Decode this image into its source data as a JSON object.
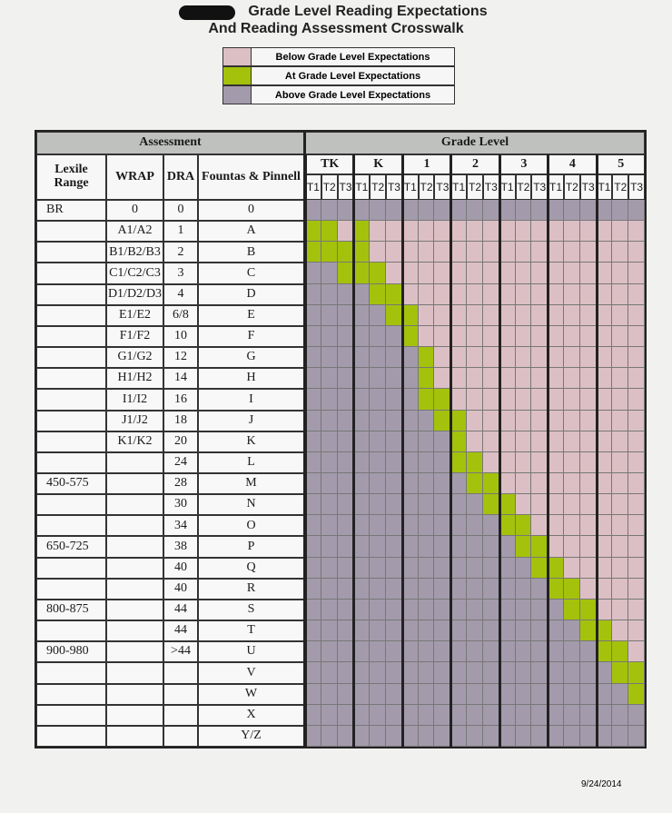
{
  "header": {
    "title": [
      "Grade Level Reading Expectations",
      "And Reading Assessment Crosswalk"
    ]
  },
  "legend": [
    "Below Grade Level Expectations",
    "At Grade Level Expectations",
    "Above Grade Level Expectations"
  ],
  "table": {
    "group_headers": [
      "Assessment",
      "Grade Level"
    ],
    "columns": [
      "Lexile Range",
      "WRAP",
      "DRA",
      "Fountas & Pinnell"
    ],
    "grades": [
      "TK",
      "K",
      1,
      2,
      3,
      4,
      5
    ],
    "terms": [
      "T1",
      "T2",
      "T3"
    ],
    "rows": [
      [
        "BR",
        0,
        0,
        0
      ],
      [
        null,
        "A1/A2",
        1,
        "A"
      ],
      [
        null,
        "B1/B2/B3",
        2,
        "B"
      ],
      [
        null,
        "C1/C2/C3",
        3,
        "C"
      ],
      [
        null,
        "D1/D2/D3",
        4,
        "D"
      ],
      [
        null,
        "E1/E2",
        "6/8",
        "E"
      ],
      [
        null,
        "F1/F2",
        10,
        "F"
      ],
      [
        null,
        "G1/G2",
        12,
        "G"
      ],
      [
        null,
        "H1/H2",
        14,
        "H"
      ],
      [
        null,
        "I1/I2",
        16,
        "I"
      ],
      [
        null,
        "J1/J2",
        18,
        "J"
      ],
      [
        null,
        "K1/K2",
        20,
        "K"
      ],
      [
        null,
        null,
        24,
        "L"
      ],
      [
        "450-575",
        null,
        28,
        "M"
      ],
      [
        null,
        null,
        30,
        "N"
      ],
      [
        null,
        null,
        34,
        "O"
      ],
      [
        "650-725",
        null,
        38,
        "P"
      ],
      [
        null,
        null,
        40,
        "Q"
      ],
      [
        null,
        null,
        40,
        "R"
      ],
      [
        "800-875",
        null,
        44,
        "S"
      ],
      [
        null,
        null,
        44,
        "T"
      ],
      [
        "900-980",
        null,
        ">44",
        "U"
      ],
      [
        null,
        null,
        null,
        "V"
      ],
      [
        null,
        null,
        null,
        "W"
      ],
      [
        null,
        null,
        null,
        "X"
      ],
      [
        null,
        null,
        null,
        "Y/Z"
      ]
    ]
  },
  "footer": {
    "date": "9/24/2014"
  }
}
